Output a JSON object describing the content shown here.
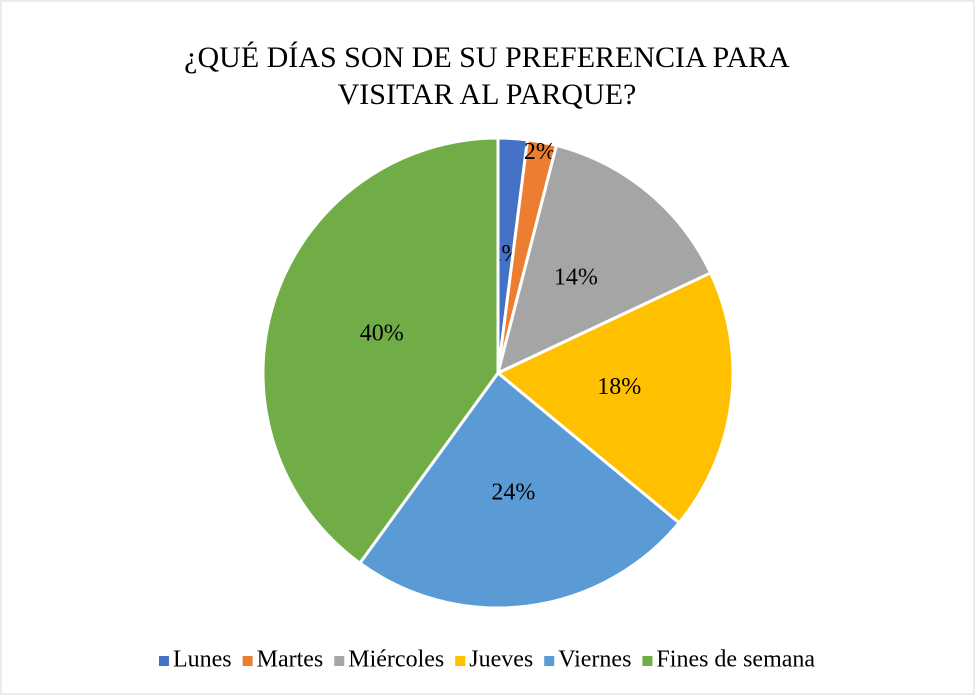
{
  "chart_data": {
    "type": "pie",
    "title": "¿QUÉ DÍAS SON DE SU PREFERENCIA PARA VISITAR AL PARQUE?",
    "categories": [
      "Lunes",
      "Martes",
      "Miércoles",
      "Jueves",
      "Viernes",
      "Fines de semana"
    ],
    "values": [
      2,
      2,
      14,
      18,
      24,
      40
    ],
    "value_labels": [
      "2%",
      "2%",
      "14%",
      "18%",
      "24%",
      "40%"
    ],
    "colors": [
      "#4472c4",
      "#ed7d31",
      "#a5a5a5",
      "#ffc000",
      "#5b9bd5",
      "#70ad47"
    ],
    "legend": "bottom"
  }
}
